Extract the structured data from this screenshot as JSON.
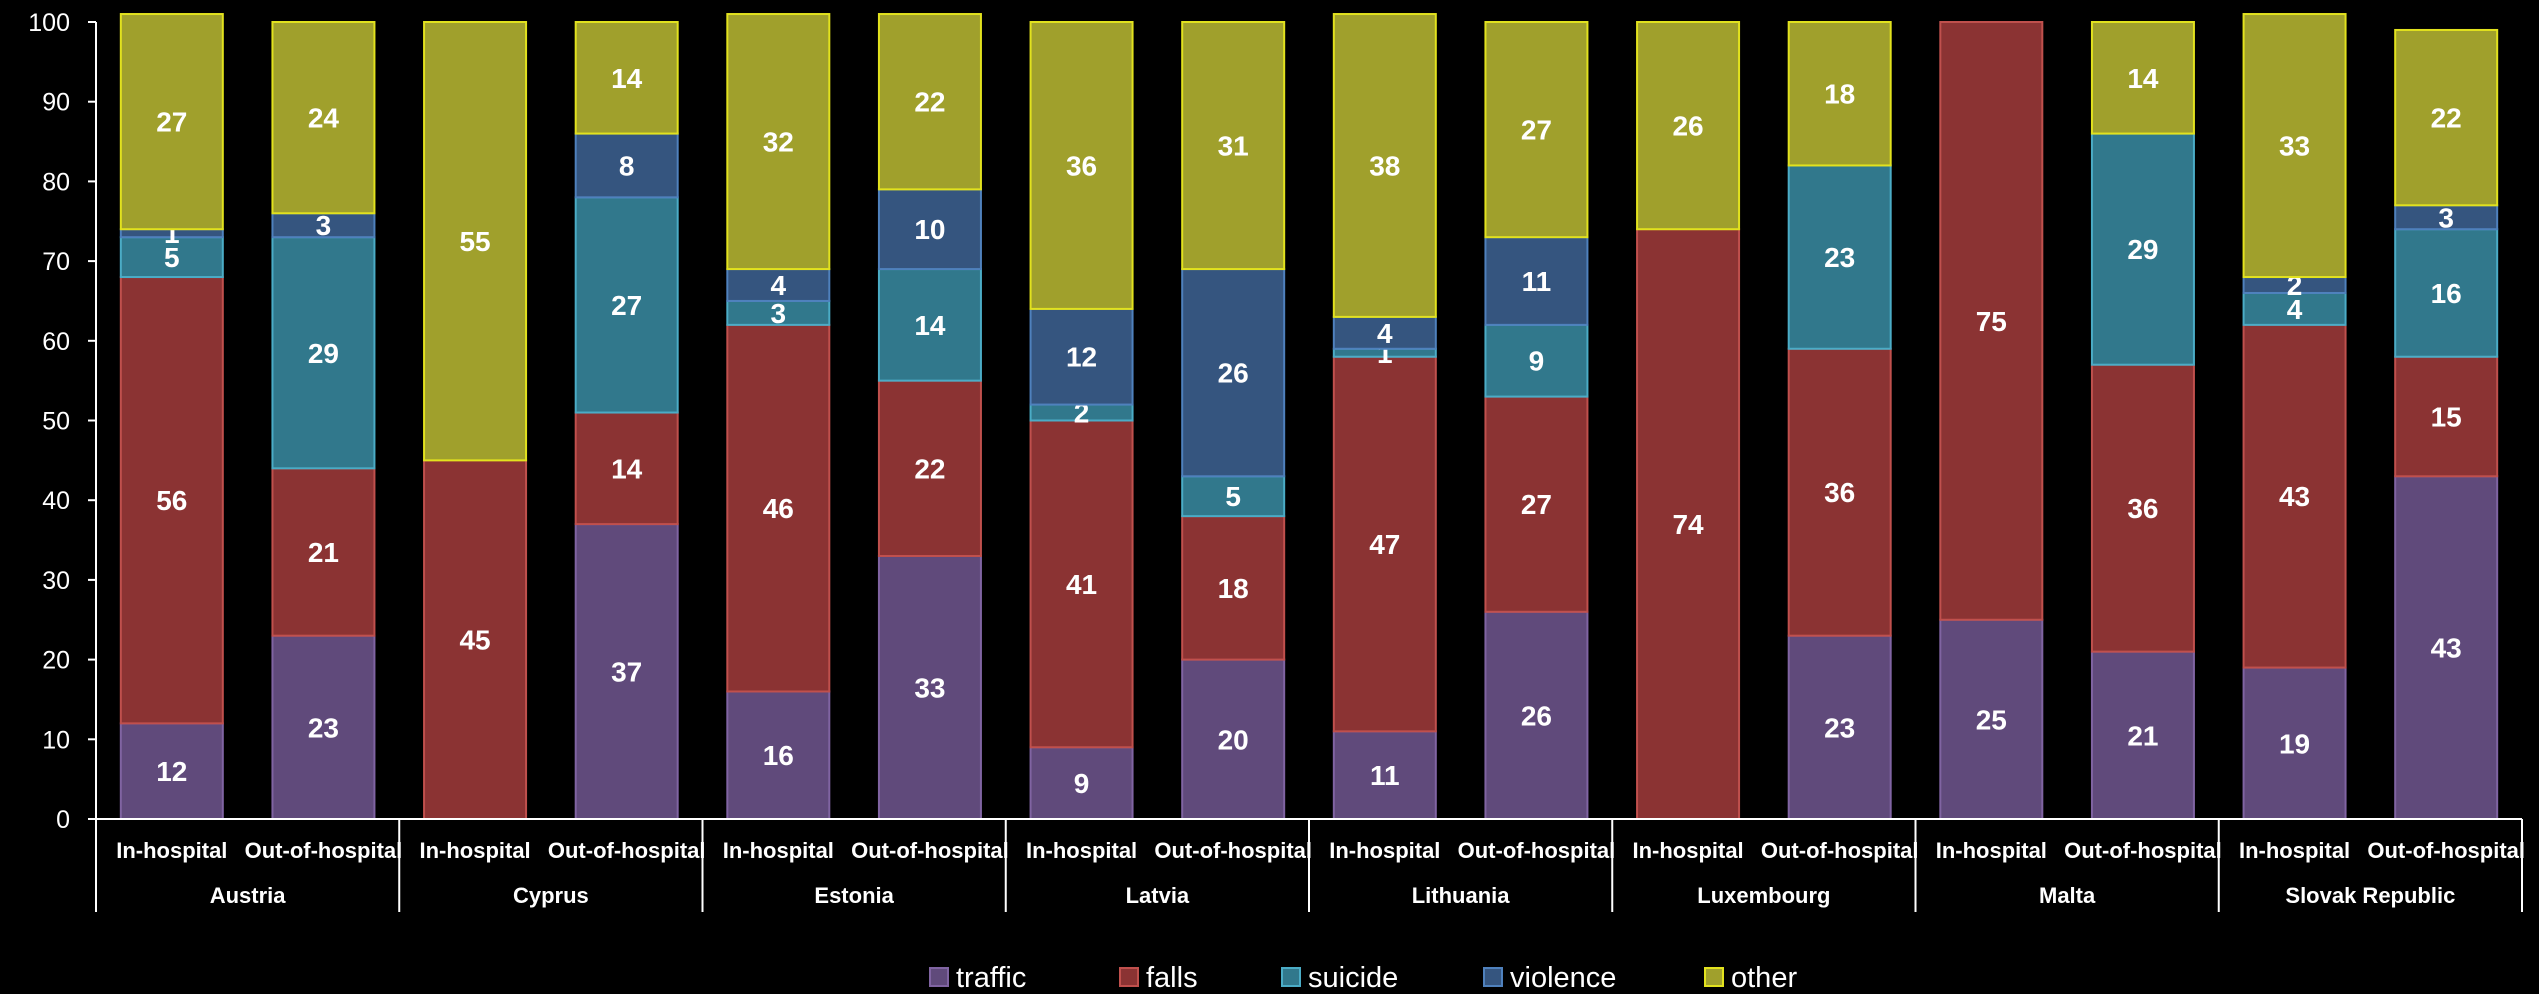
{
  "chart_data": {
    "type": "bar",
    "stacked": true,
    "title": "",
    "xlabel": "",
    "ylabel": "",
    "ylim": [
      0,
      100
    ],
    "yticks": [
      0,
      10,
      20,
      30,
      40,
      50,
      60,
      70,
      80,
      90,
      100
    ],
    "groups": [
      "Austria",
      "Cyprus",
      "Estonia",
      "Latvia",
      "Lithuania",
      "Luxembourg",
      "Malta",
      "Slovak Republic"
    ],
    "sub_categories": [
      "In-hospital",
      "Out-of-hospital"
    ],
    "categories": [
      "Austria In-hospital",
      "Austria Out-of-hospital",
      "Cyprus In-hospital",
      "Cyprus Out-of-hospital",
      "Estonia In-hospital",
      "Estonia Out-of-hospital",
      "Latvia In-hospital",
      "Latvia Out-of-hospital",
      "Lithuania In-hospital",
      "Lithuania Out-of-hospital",
      "Luxembourg In-hospital",
      "Luxembourg Out-of-hospital",
      "Malta In-hospital",
      "Malta Out-of-hospital",
      "Slovak Republic In-hospital",
      "Slovak Republic Out-of-hospital"
    ],
    "series": [
      {
        "name": "traffic",
        "color": "#604A7B",
        "border": "#8064A2",
        "values": [
          12,
          23,
          0,
          37,
          16,
          33,
          9,
          20,
          11,
          26,
          0,
          23,
          25,
          21,
          19,
          43
        ]
      },
      {
        "name": "falls",
        "color": "#8B3333",
        "border": "#C0504D",
        "values": [
          56,
          21,
          45,
          14,
          46,
          22,
          41,
          18,
          47,
          27,
          74,
          36,
          75,
          36,
          43,
          15
        ]
      },
      {
        "name": "suicide",
        "color": "#31788C",
        "border": "#4BACC6",
        "values": [
          5,
          29,
          0,
          27,
          3,
          14,
          2,
          5,
          1,
          9,
          0,
          23,
          0,
          29,
          4,
          16
        ]
      },
      {
        "name": "violence",
        "color": "#35557F",
        "border": "#4F81BD",
        "values": [
          1,
          3,
          0,
          8,
          4,
          10,
          12,
          26,
          4,
          11,
          0,
          0,
          0,
          0,
          2,
          3
        ]
      },
      {
        "name": "other",
        "color": "#A0A02C",
        "border": "#E2E21E",
        "values": [
          27,
          24,
          55,
          14,
          32,
          22,
          36,
          31,
          38,
          27,
          26,
          18,
          0,
          14,
          33,
          22
        ]
      }
    ],
    "legend_position": "bottom",
    "grid": false
  }
}
